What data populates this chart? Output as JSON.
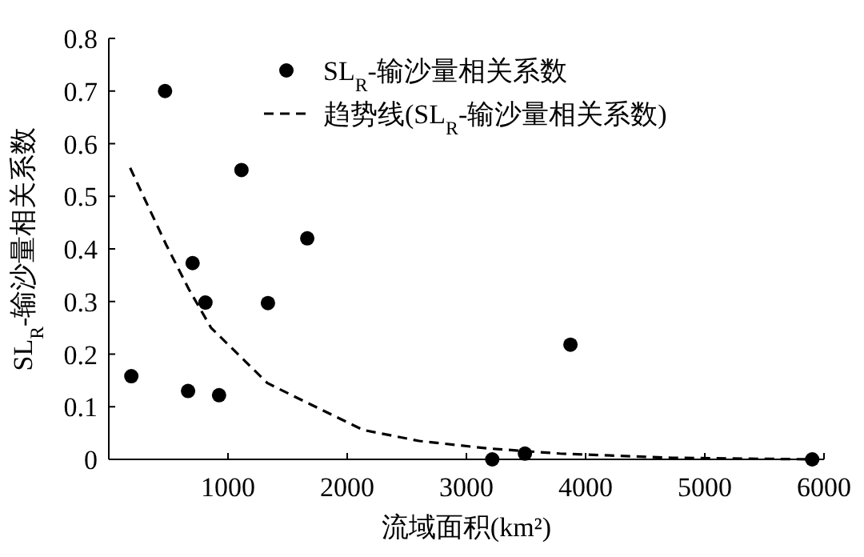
{
  "chart_data": {
    "type": "scatter",
    "xlabel": "流域面积(km²)",
    "ylabel": "SL$_{R}$-输沙量相关系数",
    "xlim": [
      0,
      6000
    ],
    "xticks": [
      1000,
      2000,
      3000,
      4000,
      5000,
      6000
    ],
    "ylim": [
      0,
      0.8
    ],
    "yticks": [
      0,
      0.1,
      0.2,
      0.3,
      0.4,
      0.5,
      0.6,
      0.7,
      0.8
    ],
    "legend": "top",
    "grid": false,
    "series": [
      {
        "name": "SL$_{R}$-输沙量相关系数",
        "marker": "circle",
        "color": "#000000",
        "x": [
          189,
          472,
          665,
          703,
          811,
          925,
          1113,
          1335,
          1665,
          3217,
          3491,
          3873,
          5901
        ],
        "values": [
          0.158,
          0.7,
          0.13,
          0.373,
          0.298,
          0.122,
          0.55,
          0.297,
          0.42,
          0,
          0.011,
          0.218,
          0
        ]
      },
      {
        "name": "趋势线(SL$_{R}$-输沙量相关系数)",
        "type": "line",
        "line_style": "dashed",
        "marker": "none",
        "color": "#000000",
        "x": [
          179,
          481,
          670,
          858,
          1142,
          1330,
          1660,
          2132,
          2604,
          3170,
          3783,
          4726,
          5906
        ],
        "values": [
          0.554,
          0.408,
          0.324,
          0.25,
          0.187,
          0.145,
          0.108,
          0.056,
          0.035,
          0.021,
          0.011,
          0.003,
          0
        ]
      }
    ]
  }
}
